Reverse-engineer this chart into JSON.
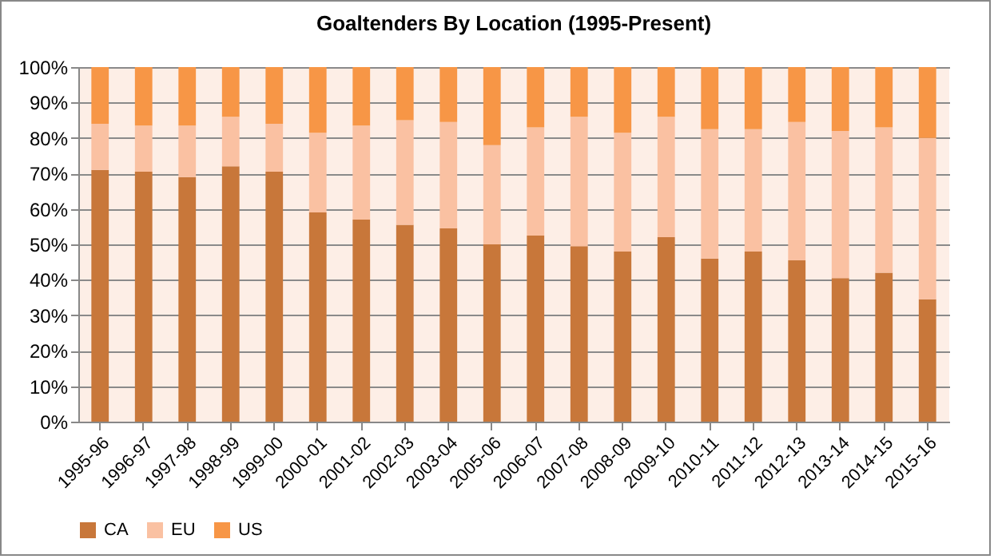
{
  "chart_data": {
    "type": "bar",
    "title": "Goaltenders By Location (1995-Present)",
    "stacked": true,
    "categories": [
      "1995-96",
      "1996-97",
      "1997-98",
      "1998-99",
      "1999-00",
      "2000-01",
      "2001-02",
      "2002-03",
      "2003-04",
      "2005-06",
      "2006-07",
      "2007-08",
      "2008-09",
      "2009-10",
      "2010-11",
      "2011-12",
      "2012-13",
      "2013-14",
      "2014-15",
      "2015-16"
    ],
    "series": [
      {
        "name": "CA",
        "color": "#c8773a",
        "values": [
          71,
          70.5,
          69,
          72,
          70.5,
          59,
          57,
          55.5,
          54.5,
          50,
          52.5,
          49.5,
          48,
          52,
          46,
          48,
          45.5,
          40.5,
          42,
          34.5
        ]
      },
      {
        "name": "EU",
        "color": "#fac1a2",
        "values": [
          13,
          13,
          14.5,
          14,
          13.5,
          22.5,
          26.5,
          29.5,
          30,
          28,
          30.5,
          36.5,
          33.5,
          34,
          36.5,
          34.5,
          39,
          41.5,
          41,
          45.5
        ]
      },
      {
        "name": "US",
        "color": "#f79646",
        "values": [
          16,
          16.5,
          16.5,
          14,
          16,
          18.5,
          16.5,
          15,
          15.5,
          22,
          17,
          14,
          18.5,
          14,
          17.5,
          17.5,
          15.5,
          18,
          17,
          20
        ]
      }
    ],
    "ylim": [
      0,
      100
    ],
    "yticks": [
      {
        "value": 0,
        "label": "0%"
      },
      {
        "value": 10,
        "label": "10%"
      },
      {
        "value": 20,
        "label": "20%"
      },
      {
        "value": 30,
        "label": "30%"
      },
      {
        "value": 40,
        "label": "40%"
      },
      {
        "value": 50,
        "label": "50%"
      },
      {
        "value": 60,
        "label": "60%"
      },
      {
        "value": 70,
        "label": "70%"
      },
      {
        "value": 80,
        "label": "80%"
      },
      {
        "value": 90,
        "label": "90%"
      },
      {
        "value": 100,
        "label": "100%"
      }
    ],
    "grid": "y",
    "legend": "bottom"
  }
}
